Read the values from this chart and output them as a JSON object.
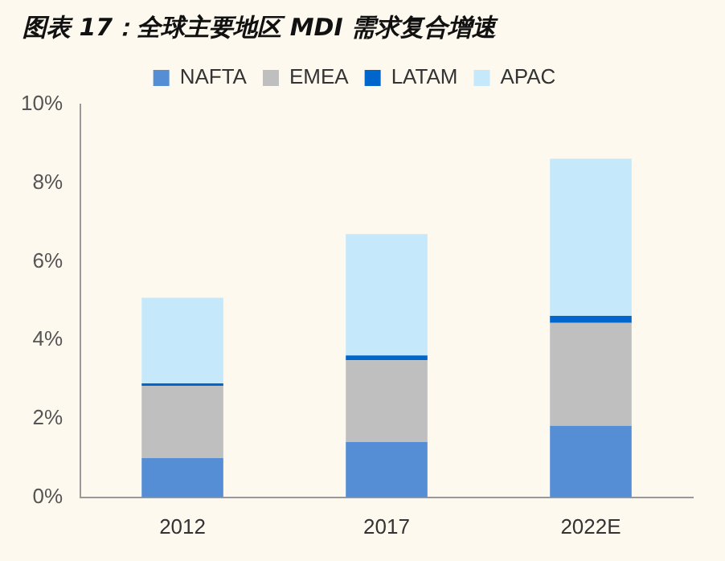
{
  "chart_data": {
    "type": "bar",
    "title": "图表 17：全球主要地区 MDI 需求复合增速",
    "stacked": true,
    "categories": [
      "2012",
      "2017",
      "2022E"
    ],
    "series": [
      {
        "name": "NAFTA",
        "color": "#558ed5",
        "values": [
          1.0,
          1.41,
          1.82
        ]
      },
      {
        "name": "EMEA",
        "color": "#bfbfbf",
        "values": [
          1.84,
          2.08,
          2.62
        ]
      },
      {
        "name": "LATAM",
        "color": "#0066cc",
        "values": [
          0.06,
          0.12,
          0.18
        ]
      },
      {
        "name": "APAC",
        "color": "#c5e8fb",
        "values": [
          2.18,
          3.09,
          4.0
        ]
      }
    ],
    "ylim": [
      0,
      10
    ],
    "yticks": [
      {
        "value": 0,
        "label": "0%"
      },
      {
        "value": 2,
        "label": "2%"
      },
      {
        "value": 4,
        "label": "4%"
      },
      {
        "value": 6,
        "label": "6%"
      },
      {
        "value": 8,
        "label": "8%"
      },
      {
        "value": 10,
        "label": "10%"
      }
    ],
    "grid": false,
    "legend": "top"
  }
}
